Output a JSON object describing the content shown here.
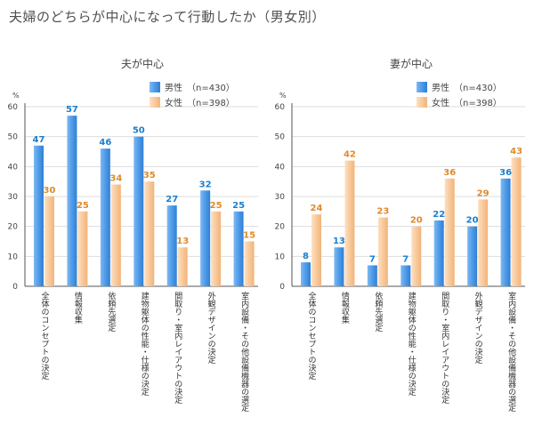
{
  "page_title": "夫婦のどちらが中心になって行動したか（男女別）",
  "colors": {
    "male_bar": "#4f9be8",
    "male_label": "#1a7fd0",
    "female_bar": "#f9c99b",
    "female_label": "#e08a2a",
    "axis": "#555555",
    "grid": "#dddddd"
  },
  "chart_data": [
    {
      "type": "bar",
      "title": "夫が中心",
      "ylabel": "%",
      "ylim": [
        0,
        60
      ],
      "yticks": [
        0,
        10,
        20,
        30,
        40,
        50,
        60
      ],
      "legend_position": "top-right",
      "categories": [
        "全体のコンセプトの決定",
        "情報収集",
        "依頼先選定",
        "建物躯体の性能・仕様の決定",
        "間取り・室内レイアウトの決定",
        "外観デザインの決定",
        "室内設備・その他設備機器の選定"
      ],
      "series": [
        {
          "name": "男性",
          "legend_n": "（n=430）",
          "values": [
            47,
            57,
            46,
            50,
            27,
            32,
            25
          ]
        },
        {
          "name": "女性",
          "legend_n": "（n=398）",
          "values": [
            30,
            25,
            34,
            35,
            13,
            25,
            15
          ]
        }
      ]
    },
    {
      "type": "bar",
      "title": "妻が中心",
      "ylabel": "%",
      "ylim": [
        0,
        60
      ],
      "yticks": [
        0,
        10,
        20,
        30,
        40,
        50,
        60
      ],
      "legend_position": "top-right",
      "categories": [
        "全体のコンセプトの決定",
        "情報収集",
        "依頼先選定",
        "建物躯体の性能・仕様の決定",
        "間取り・室内レイアウトの決定",
        "外観デザインの決定",
        "室内設備・その他設備機器の選定"
      ],
      "series": [
        {
          "name": "男性",
          "legend_n": "（n=430）",
          "values": [
            8,
            13,
            7,
            7,
            22,
            20,
            36
          ]
        },
        {
          "name": "女性",
          "legend_n": "（n=398）",
          "values": [
            24,
            42,
            23,
            20,
            36,
            29,
            43
          ]
        }
      ]
    }
  ]
}
